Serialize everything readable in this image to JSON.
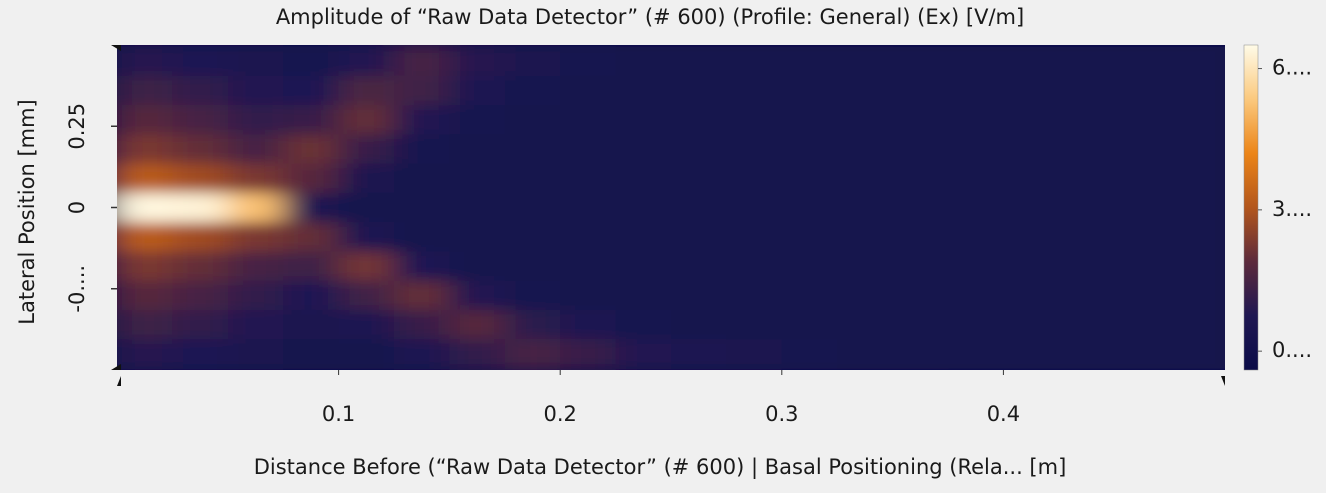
{
  "chart_data": {
    "type": "heatmap",
    "title": "Amplitude of “Raw Data Detector” (# 600) (Profile: General) (Ex)  [V/m]",
    "x_label": "Distance Before (“Raw Data Detector” (# 600) | Basal Positioning (Rela... [m]",
    "y_label": "Lateral Position [mm]",
    "xlim": [
      0,
      0.5
    ],
    "xticks": [
      0.1,
      0.2,
      0.3,
      0.4
    ],
    "ylim": [
      -0.5,
      0.5
    ],
    "yticks": [
      0.25,
      0,
      {
        "value": -0.25,
        "label": "-0...."
      }
    ],
    "clim": [
      -0.4,
      6.5
    ],
    "cticks": [
      {
        "value": 6,
        "label": "6...."
      },
      {
        "value": 3,
        "label": "3...."
      },
      {
        "value": 0,
        "label": "0...."
      }
    ],
    "colormap": [
      "#0b0c48",
      "#1f1752",
      "#5c2a3c",
      "#b3561c",
      "#ec8518",
      "#fbc97e",
      "#fffbe8"
    ],
    "x": [
      0.0125,
      0.0375,
      0.0625,
      0.0875,
      0.1125,
      0.1375,
      0.1625,
      0.1875,
      0.2125,
      0.2375,
      0.2625,
      0.2875,
      0.3125,
      0.3375,
      0.3625,
      0.3875,
      0.4125,
      0.4375,
      0.4625,
      0.4875
    ],
    "y": [
      0.45,
      0.36,
      0.27,
      0.18,
      0.09,
      0,
      -0.09,
      -0.18,
      -0.27,
      -0.36,
      -0.45
    ],
    "z": [
      [
        0.9,
        0.7,
        0.5,
        0.4,
        0.8,
        1.5,
        0.9,
        0.5,
        0.4,
        0.3,
        0.3,
        0.3,
        0.25,
        0.25,
        0.2,
        0.2,
        0.2,
        0.2,
        0.2,
        0.2
      ],
      [
        1.3,
        1.1,
        0.8,
        0.7,
        1.6,
        1.4,
        0.6,
        0.4,
        0.3,
        0.3,
        0.25,
        0.2,
        0.2,
        0.2,
        0.2,
        0.2,
        0.2,
        0.2,
        0.2,
        0.2
      ],
      [
        1.8,
        1.5,
        1.1,
        1.2,
        2.0,
        0.8,
        0.4,
        0.3,
        0.25,
        0.2,
        0.2,
        0.2,
        0.2,
        0.2,
        0.2,
        0.2,
        0.2,
        0.2,
        0.2,
        0.2
      ],
      [
        2.3,
        2.0,
        1.5,
        2.1,
        1.2,
        0.4,
        0.3,
        0.2,
        0.2,
        0.2,
        0.2,
        0.2,
        0.2,
        0.2,
        0.2,
        0.2,
        0.2,
        0.2,
        0.2,
        0.2
      ],
      [
        3.2,
        2.8,
        2.3,
        1.8,
        0.5,
        0.3,
        0.2,
        0.2,
        0.2,
        0.2,
        0.2,
        0.2,
        0.2,
        0.2,
        0.2,
        0.2,
        0.2,
        0.2,
        0.2,
        0.2
      ],
      [
        6.4,
        6.3,
        5.2,
        0.6,
        0.3,
        0.2,
        0.2,
        0.2,
        0.2,
        0.2,
        0.2,
        0.2,
        0.2,
        0.2,
        0.2,
        0.2,
        0.2,
        0.2,
        0.2,
        0.2
      ],
      [
        3.2,
        2.8,
        2.3,
        2.0,
        0.6,
        0.3,
        0.2,
        0.2,
        0.2,
        0.2,
        0.2,
        0.2,
        0.2,
        0.2,
        0.2,
        0.2,
        0.2,
        0.2,
        0.2,
        0.2
      ],
      [
        2.3,
        2.0,
        1.5,
        1.3,
        2.2,
        0.7,
        0.3,
        0.2,
        0.2,
        0.2,
        0.2,
        0.2,
        0.2,
        0.2,
        0.2,
        0.2,
        0.2,
        0.2,
        0.2,
        0.2
      ],
      [
        1.8,
        1.5,
        1.1,
        0.7,
        1.4,
        2.0,
        0.8,
        0.4,
        0.3,
        0.2,
        0.2,
        0.2,
        0.2,
        0.2,
        0.2,
        0.2,
        0.2,
        0.2,
        0.2,
        0.2
      ],
      [
        1.3,
        1.1,
        0.8,
        0.5,
        0.6,
        1.2,
        1.8,
        1.0,
        0.6,
        0.4,
        0.3,
        0.3,
        0.25,
        0.2,
        0.2,
        0.2,
        0.2,
        0.2,
        0.2,
        0.2
      ],
      [
        0.9,
        0.7,
        0.5,
        0.3,
        0.3,
        0.6,
        1.1,
        1.5,
        1.2,
        0.8,
        0.6,
        0.45,
        0.35,
        0.3,
        0.25,
        0.2,
        0.2,
        0.2,
        0.2,
        0.2
      ]
    ]
  }
}
